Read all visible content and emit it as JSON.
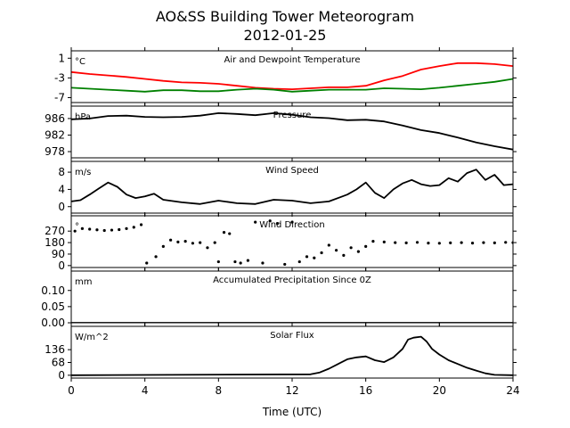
{
  "figure": {
    "title": "AO&SS Building Tower Meteorogram",
    "subtitle": "2012-01-25",
    "xlabel": "Time (UTC)"
  },
  "chart_data": [
    {
      "type": "line",
      "title": "Air and Dewpoint Temperature",
      "unit": "°C",
      "xlim": [
        0,
        24
      ],
      "ylim": [
        -8,
        2.5
      ],
      "yticks": [
        -7,
        -3,
        1
      ],
      "xticks": [
        0,
        4,
        8,
        12,
        16,
        20,
        24
      ],
      "series": [
        {
          "color": "#ff0000",
          "x": [
            0,
            1,
            2,
            3,
            4,
            5,
            6,
            7,
            8,
            9,
            10,
            11,
            12,
            13,
            14,
            15,
            16,
            17,
            18,
            19,
            20,
            21,
            22,
            23,
            24
          ],
          "y": [
            -1.8,
            -2.2,
            -2.5,
            -2.8,
            -3.2,
            -3.6,
            -3.9,
            -4.0,
            -4.2,
            -4.6,
            -5.0,
            -5.2,
            -5.3,
            -5.1,
            -4.9,
            -4.9,
            -4.6,
            -3.5,
            -2.6,
            -1.3,
            -0.6,
            0.0,
            0.0,
            -0.2,
            -0.6
          ]
        },
        {
          "color": "#008000",
          "x": [
            0,
            1,
            2,
            3,
            4,
            5,
            6,
            7,
            8,
            9,
            10,
            11,
            12,
            13,
            14,
            15,
            16,
            17,
            18,
            19,
            20,
            21,
            22,
            23,
            24
          ],
          "y": [
            -5.0,
            -5.2,
            -5.4,
            -5.6,
            -5.8,
            -5.5,
            -5.5,
            -5.7,
            -5.7,
            -5.4,
            -5.2,
            -5.4,
            -5.8,
            -5.6,
            -5.4,
            -5.4,
            -5.4,
            -5.1,
            -5.2,
            -5.3,
            -5.0,
            -4.6,
            -4.2,
            -3.8,
            -3.2
          ]
        }
      ]
    },
    {
      "type": "line",
      "title": "Pressure",
      "unit": "hPa",
      "xlim": [
        0,
        24
      ],
      "ylim": [
        976.5,
        989
      ],
      "yticks": [
        978,
        982,
        986
      ],
      "xticks": [
        0,
        4,
        8,
        12,
        16,
        20,
        24
      ],
      "series": [
        {
          "color": "#000000",
          "x": [
            0,
            1,
            2,
            3,
            4,
            5,
            6,
            7,
            8,
            9,
            10,
            11,
            12,
            13,
            14,
            15,
            16,
            17,
            18,
            19,
            20,
            21,
            22,
            23,
            24
          ],
          "y": [
            985.8,
            986.0,
            986.6,
            986.7,
            986.4,
            986.3,
            986.4,
            986.7,
            987.3,
            987.1,
            986.8,
            987.3,
            986.9,
            986.3,
            986.1,
            985.6,
            985.7,
            985.3,
            984.3,
            983.2,
            982.5,
            981.4,
            980.2,
            979.3,
            978.5
          ]
        }
      ]
    },
    {
      "type": "line",
      "title": "Wind Speed",
      "unit": "m/s",
      "xlim": [
        0,
        24
      ],
      "ylim": [
        -1.5,
        10.5
      ],
      "yticks": [
        0,
        4,
        8
      ],
      "xticks": [
        0,
        4,
        8,
        12,
        16,
        20,
        24
      ],
      "series": [
        {
          "color": "#000000",
          "x": [
            0,
            0.5,
            1,
            1.5,
            2,
            2.5,
            3,
            3.5,
            4,
            4.5,
            5,
            6,
            7,
            8,
            9,
            10,
            11,
            12,
            13,
            14,
            15,
            15.5,
            16,
            16.5,
            17,
            17.5,
            18,
            18.5,
            19,
            19.5,
            20,
            20.5,
            21,
            21.5,
            22,
            22.5,
            23,
            23.5,
            24
          ],
          "y": [
            1.2,
            1.5,
            2.8,
            4.2,
            5.6,
            4.6,
            2.8,
            2.0,
            2.4,
            3.0,
            1.6,
            1.0,
            0.6,
            1.4,
            0.8,
            0.6,
            1.6,
            1.4,
            0.8,
            1.2,
            2.8,
            4.0,
            5.6,
            3.2,
            2.0,
            4.0,
            5.4,
            6.2,
            5.2,
            4.8,
            5.0,
            6.6,
            5.8,
            7.8,
            8.6,
            6.2,
            7.4,
            5.0,
            5.2
          ]
        }
      ]
    },
    {
      "type": "scatter",
      "title": "Wind Direction",
      "unit": "°",
      "xlim": [
        0,
        24
      ],
      "ylim": [
        -15,
        390
      ],
      "yticks": [
        0,
        90,
        180,
        270
      ],
      "xticks": [
        0,
        4,
        8,
        12,
        16,
        20,
        24
      ],
      "series": [
        {
          "color": "#000000",
          "x": [
            0.2,
            0.6,
            1.0,
            1.4,
            1.8,
            2.2,
            2.6,
            3.0,
            3.4,
            3.8,
            4.1,
            4.6,
            5.0,
            5.4,
            5.8,
            6.2,
            6.6,
            7.0,
            7.4,
            7.8,
            8.0,
            8.3,
            8.6,
            8.9,
            9.2,
            9.6,
            10.0,
            10.4,
            10.8,
            11.2,
            11.6,
            12.0,
            12.4,
            12.8,
            13.2,
            13.6,
            14.0,
            14.4,
            14.8,
            15.2,
            15.6,
            16.0,
            16.4,
            17.0,
            17.6,
            18.2,
            18.8,
            19.4,
            20.0,
            20.6,
            21.2,
            21.8,
            22.4,
            23.0,
            23.6,
            24.0
          ],
          "y": [
            270,
            290,
            285,
            280,
            275,
            278,
            282,
            290,
            300,
            320,
            20,
            70,
            150,
            200,
            185,
            190,
            175,
            180,
            140,
            180,
            30,
            260,
            250,
            30,
            20,
            40,
            340,
            20,
            350,
            330,
            10,
            340,
            30,
            70,
            60,
            100,
            160,
            120,
            80,
            140,
            110,
            150,
            190,
            185,
            180,
            178,
            182,
            176,
            175,
            178,
            180,
            176,
            180,
            178,
            182,
            180
          ]
        }
      ]
    },
    {
      "type": "line",
      "title": "Accumulated Precipitation Since 0Z",
      "unit": "mm",
      "xlim": [
        0,
        24
      ],
      "ylim": [
        0,
        0.16
      ],
      "yticks": [
        0.0,
        0.05,
        0.1
      ],
      "xticks": [
        0,
        4,
        8,
        12,
        16,
        20,
        24
      ],
      "series": [
        {
          "color": "#000000",
          "x": [
            0,
            24
          ],
          "y": [
            0,
            0
          ]
        }
      ]
    },
    {
      "type": "line",
      "title": "Solar Flux",
      "unit": "W/m^2",
      "xlim": [
        0,
        24
      ],
      "ylim": [
        -15,
        260
      ],
      "yticks": [
        0,
        68,
        136
      ],
      "xticks": [
        0,
        4,
        8,
        12,
        16,
        20,
        24
      ],
      "series": [
        {
          "color": "#000000",
          "x": [
            0,
            13.0,
            13.5,
            14.0,
            14.5,
            15.0,
            15.5,
            16.0,
            16.5,
            17.0,
            17.5,
            18.0,
            18.3,
            18.6,
            19.0,
            19.3,
            19.6,
            20.0,
            20.5,
            21.0,
            21.5,
            22.0,
            22.5,
            23.0,
            24.0
          ],
          "y": [
            0,
            5,
            15,
            35,
            60,
            85,
            95,
            100,
            80,
            70,
            95,
            140,
            190,
            200,
            205,
            180,
            140,
            110,
            80,
            60,
            40,
            25,
            10,
            2,
            0
          ]
        }
      ]
    }
  ]
}
